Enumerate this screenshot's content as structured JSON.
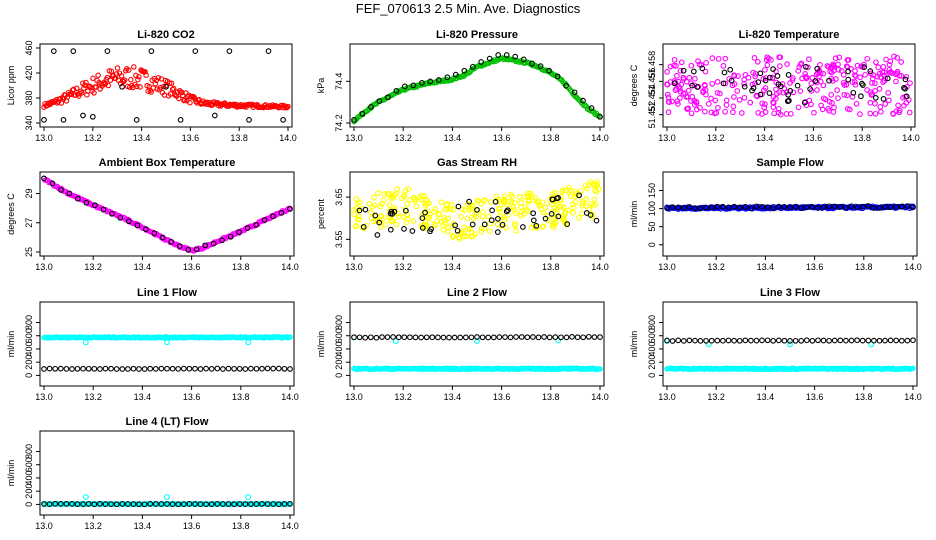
{
  "figure": {
    "title": "FEF_070613  2.5 Min. Ave. Diagnostics"
  },
  "colors": {
    "black": "#000000",
    "red": "#ff0000",
    "green": "#00c000",
    "magenta": "#ff00ff",
    "yellow": "#ffff00",
    "blue": "#0000ff",
    "cyan": "#00ffff"
  },
  "chart_data": [
    {
      "id": "co2",
      "type": "scatter",
      "title": "Li-820 CO2",
      "ylabel": "Licor ppm",
      "xlim": [
        13.0,
        14.0
      ],
      "ylim": [
        340,
        460
      ],
      "xticks": [
        "13.0",
        "13.2",
        "13.4",
        "13.6",
        "13.8",
        "14.0"
      ],
      "yticks": [
        340,
        380,
        420,
        460
      ],
      "yticklabels": [
        "340",
        "380",
        "420",
        "460"
      ],
      "series": [
        {
          "name": "dense",
          "color": "red",
          "pattern": "hump",
          "x": [
            13.0,
            13.05,
            13.1,
            13.15,
            13.2,
            13.25,
            13.3,
            13.35,
            13.4,
            13.45,
            13.5,
            13.55,
            13.6,
            13.65,
            13.7,
            13.8,
            13.9,
            14.0
          ],
          "y": [
            368,
            374,
            382,
            392,
            400,
            408,
            412,
            413,
            410,
            404,
            397,
            388,
            378,
            372,
            370,
            368,
            367,
            366
          ]
        },
        {
          "name": "sparse",
          "color": "black",
          "pattern": "scatter",
          "x": [
            13.0,
            13.04,
            13.08,
            13.12,
            13.16,
            13.2,
            13.26,
            13.32,
            13.38,
            13.44,
            13.5,
            13.56,
            13.62,
            13.7,
            13.76,
            13.84,
            13.92,
            13.98
          ],
          "y": [
            345,
            455,
            345,
            455,
            352,
            350,
            455,
            398,
            345,
            455,
            398,
            345,
            455,
            352,
            455,
            345,
            455,
            345
          ]
        }
      ]
    },
    {
      "id": "pressure",
      "type": "scatter",
      "title": "Li-820 Pressure",
      "ylabel": "kPa",
      "xlim": [
        13.0,
        14.0
      ],
      "ylim": [
        74.2,
        74.56
      ],
      "xticks": [
        "13.0",
        "13.2",
        "13.4",
        "13.6",
        "13.8",
        "14.0"
      ],
      "yticks": [
        74.2,
        74.4
      ],
      "yticklabels": [
        "74.2",
        "74.4"
      ],
      "series": [
        {
          "name": "dense",
          "color": "green",
          "pattern": "trace",
          "x": [
            13.0,
            13.05,
            13.1,
            13.2,
            13.3,
            13.4,
            13.45,
            13.5,
            13.55,
            13.6,
            13.65,
            13.7,
            13.75,
            13.8,
            13.85,
            13.9,
            13.95,
            14.0
          ],
          "y": [
            74.21,
            74.26,
            74.3,
            74.36,
            74.39,
            74.41,
            74.43,
            74.47,
            74.49,
            74.51,
            74.5,
            74.49,
            74.47,
            74.44,
            74.4,
            74.33,
            74.27,
            74.23
          ]
        },
        {
          "name": "sparse",
          "color": "black",
          "pattern": "follow",
          "x": [
            13.0,
            13.1,
            13.2,
            13.3,
            13.4,
            13.5,
            13.6,
            13.7,
            13.8,
            13.9,
            14.0
          ],
          "y": [
            74.22,
            74.3,
            74.37,
            74.4,
            74.42,
            74.48,
            74.53,
            74.5,
            74.45,
            74.34,
            74.23
          ]
        }
      ]
    },
    {
      "id": "li_temp",
      "type": "scatter",
      "title": "Li-820 Temperature",
      "ylabel": "degrees C",
      "xlim": [
        13.0,
        14.0
      ],
      "ylim": [
        51.451,
        51.46
      ],
      "xticks": [
        "13.0",
        "13.2",
        "13.4",
        "13.6",
        "13.8",
        "14.0"
      ],
      "yticks": [
        51.452,
        51.454,
        51.456,
        51.458
      ],
      "yticklabels": [
        "51.452",
        "51.454",
        "51.456",
        "51.458"
      ],
      "series": [
        {
          "name": "dense",
          "color": "magenta",
          "pattern": "noise",
          "x": [
            13.0,
            14.0
          ],
          "y": [
            51.4555,
            51.4555
          ],
          "spread": 0.0035
        },
        {
          "name": "sparse",
          "color": "black",
          "pattern": "noise-sparse",
          "x": [
            13.0,
            14.0
          ],
          "y": [
            51.4558,
            51.4555
          ],
          "spread": 0.0022
        }
      ]
    },
    {
      "id": "box_temp",
      "type": "scatter",
      "title": "Ambient Box Temperature",
      "ylabel": "degrees C",
      "xlim": [
        13.0,
        14.0
      ],
      "ylim": [
        25.0,
        30.2
      ],
      "xticks": [
        "13.0",
        "13.2",
        "13.4",
        "13.6",
        "13.8",
        "14.0"
      ],
      "yticks": [
        25,
        27,
        29
      ],
      "yticklabels": [
        "25",
        "27",
        "29"
      ],
      "series": [
        {
          "name": "dense",
          "color": "magenta",
          "pattern": "trace",
          "x": [
            13.0,
            13.1,
            13.2,
            13.3,
            13.4,
            13.5,
            13.55,
            13.6,
            13.65,
            13.7,
            13.8,
            13.9,
            14.0
          ],
          "y": [
            30.0,
            29.0,
            28.2,
            27.5,
            26.7,
            25.8,
            25.4,
            25.1,
            25.3,
            25.7,
            26.4,
            27.2,
            28.0
          ]
        },
        {
          "name": "sparse",
          "color": "black",
          "pattern": "follow",
          "x": [
            13.0,
            13.1,
            13.2,
            13.3,
            13.4,
            13.5,
            13.6,
            13.7,
            13.8,
            13.9,
            14.0
          ],
          "y": [
            30.0,
            29.0,
            28.2,
            27.5,
            26.7,
            25.8,
            25.1,
            25.7,
            26.4,
            27.2,
            28.0
          ]
        }
      ]
    },
    {
      "id": "rh",
      "type": "scatter",
      "title": "Gas Stream RH",
      "ylabel": "percent",
      "xlim": [
        13.0,
        14.0
      ],
      "ylim": [
        3.52,
        3.7
      ],
      "xticks": [
        "13.0",
        "13.2",
        "13.4",
        "13.6",
        "13.8",
        "14.0"
      ],
      "yticks": [
        3.55,
        3.65
      ],
      "yticklabels": [
        "3.55",
        "3.65"
      ],
      "series": [
        {
          "name": "dense",
          "color": "yellow",
          "pattern": "noise",
          "x": [
            13.0,
            13.2,
            13.3,
            13.4,
            13.6,
            13.8,
            14.0
          ],
          "y": [
            3.61,
            3.63,
            3.62,
            3.59,
            3.61,
            3.62,
            3.65
          ],
          "spread": 0.045
        },
        {
          "name": "sparse",
          "color": "black",
          "pattern": "noise-sparse",
          "x": [
            13.0,
            13.5,
            14.0
          ],
          "y": [
            3.6,
            3.6,
            3.62
          ],
          "spread": 0.04
        }
      ]
    },
    {
      "id": "sample_flow",
      "type": "scatter",
      "title": "Sample Flow",
      "ylabel": "ml/min",
      "xlim": [
        13.0,
        14.0
      ],
      "ylim": [
        -20,
        190
      ],
      "xticks": [
        "13.0",
        "13.2",
        "13.4",
        "13.6",
        "13.8",
        "14.0"
      ],
      "yticks": [
        0,
        50,
        100,
        150
      ],
      "yticklabels": [
        "0",
        "50",
        "100",
        "150"
      ],
      "series": [
        {
          "name": "dense",
          "color": "blue",
          "pattern": "band",
          "x": [
            13.0,
            14.0
          ],
          "y": [
            101,
            104
          ],
          "spread": 3
        },
        {
          "name": "sparse",
          "color": "black",
          "pattern": "band-sparse",
          "x": [
            13.0,
            14.0
          ],
          "y": [
            102,
            105
          ],
          "spread": 3
        }
      ]
    },
    {
      "id": "line1",
      "type": "scatter",
      "title": "Line 1 Flow",
      "ylabel": "ml/min",
      "xlim": [
        13.0,
        14.0
      ],
      "ylim": [
        -100,
        1050
      ],
      "xticks": [
        "13.0",
        "13.2",
        "13.4",
        "13.6",
        "13.8",
        "14.0"
      ],
      "yticks": [
        0,
        200,
        400,
        600,
        800
      ],
      "yticklabels": [
        "0",
        "200",
        "400",
        "600",
        "800"
      ],
      "series": [
        {
          "name": "dense",
          "color": "cyan",
          "pattern": "band",
          "x": [
            13.0,
            14.0
          ],
          "y": [
            575,
            575
          ],
          "spread": 8,
          "dips_x": [
            13.17,
            13.5,
            13.83
          ],
          "dips_y": [
            500,
            500,
            500
          ]
        },
        {
          "name": "sparse",
          "color": "black",
          "pattern": "band-sparse",
          "x": [
            13.0,
            14.0
          ],
          "y": [
            100,
            100
          ],
          "spread": 4
        }
      ]
    },
    {
      "id": "line2",
      "type": "scatter",
      "title": "Line 2 Flow",
      "ylabel": "ml/min",
      "xlim": [
        13.0,
        14.0
      ],
      "ylim": [
        -100,
        1050
      ],
      "xticks": [
        "13.0",
        "13.2",
        "13.4",
        "13.6",
        "13.8",
        "14.0"
      ],
      "yticks": [
        0,
        200,
        400,
        600,
        800
      ],
      "yticklabels": [
        "0",
        "200",
        "400",
        "600",
        "800"
      ],
      "series": [
        {
          "name": "dense",
          "color": "cyan",
          "pattern": "band",
          "x": [
            13.0,
            14.0
          ],
          "y": [
            100,
            100
          ],
          "spread": 8,
          "extra_x": [
            13.0,
            13.17,
            13.5,
            13.83
          ],
          "extra_y": [
            575,
            520,
            520,
            530
          ]
        },
        {
          "name": "sparse",
          "color": "black",
          "pattern": "band-sparse",
          "x": [
            13.0,
            14.0
          ],
          "y": [
            575,
            580
          ],
          "spread": 5
        }
      ]
    },
    {
      "id": "line3",
      "type": "scatter",
      "title": "Line 3 Flow",
      "ylabel": "ml/min",
      "xlim": [
        13.0,
        14.0
      ],
      "ylim": [
        -100,
        1050
      ],
      "xticks": [
        "13.0",
        "13.2",
        "13.4",
        "13.6",
        "13.8",
        "14.0"
      ],
      "yticks": [
        0,
        200,
        400,
        600,
        800
      ],
      "yticklabels": [
        "0",
        "200",
        "400",
        "600",
        "800"
      ],
      "series": [
        {
          "name": "dense",
          "color": "cyan",
          "pattern": "band",
          "x": [
            13.0,
            14.0
          ],
          "y": [
            100,
            100
          ],
          "spread": 8,
          "extra_x": [
            13.0,
            13.17,
            13.5,
            13.83
          ],
          "extra_y": [
            520,
            470,
            470,
            470
          ]
        },
        {
          "name": "sparse",
          "color": "black",
          "pattern": "band-sparse",
          "x": [
            13.0,
            14.0
          ],
          "y": [
            525,
            530
          ],
          "spread": 5
        }
      ]
    },
    {
      "id": "line4",
      "type": "scatter",
      "title": "Line 4 (LT) Flow",
      "ylabel": "ml/min",
      "xlim": [
        13.0,
        14.0
      ],
      "ylim": [
        -100,
        1050
      ],
      "xticks": [
        "13.0",
        "13.2",
        "13.4",
        "13.6",
        "13.8",
        "14.0"
      ],
      "yticks": [
        0,
        200,
        400,
        600,
        800
      ],
      "yticklabels": [
        "0",
        "200",
        "400",
        "600",
        "800"
      ],
      "series": [
        {
          "name": "dense",
          "color": "cyan",
          "pattern": "band",
          "x": [
            13.0,
            14.0
          ],
          "y": [
            5,
            5
          ],
          "spread": 4,
          "extra_x": [
            13.17,
            13.5,
            13.83
          ],
          "extra_y": [
            110,
            110,
            110
          ]
        },
        {
          "name": "sparse",
          "color": "black",
          "pattern": "band-sparse",
          "x": [
            13.0,
            14.0
          ],
          "y": [
            5,
            5
          ],
          "spread": 3
        }
      ]
    }
  ]
}
